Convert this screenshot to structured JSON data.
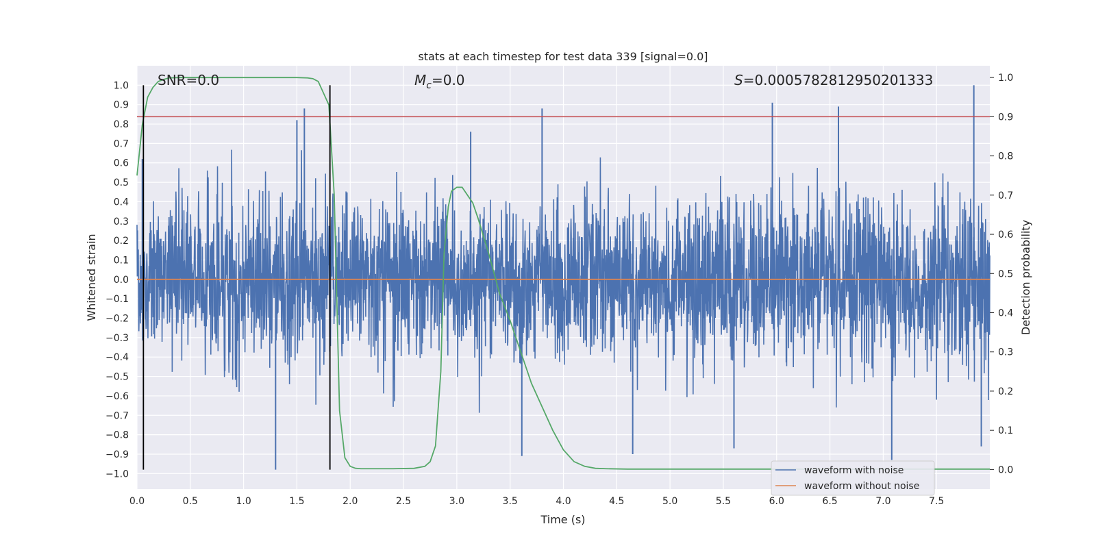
{
  "chart_data": {
    "type": "line",
    "title": "stats at each timestep for test data 339 [signal=0.0]",
    "xlabel": "Time (s)",
    "ylabel_left": "Whitened strain",
    "ylabel_right": "Detection probability",
    "xlim": [
      0.0,
      8.0
    ],
    "ylim_left": [
      -1.08,
      1.1
    ],
    "ylim_right": [
      -0.05,
      1.03
    ],
    "x_ticks": [
      "0.0",
      "0.5",
      "1.0",
      "1.5",
      "2.0",
      "2.5",
      "3.0",
      "3.5",
      "4.0",
      "4.5",
      "5.0",
      "5.5",
      "6.0",
      "6.5",
      "7.0",
      "7.5"
    ],
    "x_tick_values": [
      0.0,
      0.5,
      1.0,
      1.5,
      2.0,
      2.5,
      3.0,
      3.5,
      4.0,
      4.5,
      5.0,
      5.5,
      6.0,
      6.5,
      7.0,
      7.5
    ],
    "y_left_ticks": [
      "1.0",
      "0.9",
      "0.8",
      "0.7",
      "0.6",
      "0.5",
      "0.4",
      "0.3",
      "0.2",
      "0.1",
      "0.0",
      "−0.1",
      "−0.2",
      "−0.3",
      "−0.4",
      "−0.5",
      "−0.6",
      "−0.7",
      "−0.8",
      "−0.9",
      "−1.0"
    ],
    "y_left_tick_values": [
      1.0,
      0.9,
      0.8,
      0.7,
      0.6,
      0.5,
      0.4,
      0.3,
      0.2,
      0.1,
      0.0,
      -0.1,
      -0.2,
      -0.3,
      -0.4,
      -0.5,
      -0.6,
      -0.7,
      -0.8,
      -0.9,
      -1.0
    ],
    "y_right_ticks": [
      "1.0",
      "0.9",
      "0.8",
      "0.7",
      "0.6",
      "0.5",
      "0.4",
      "0.3",
      "0.2",
      "0.1",
      "0.0"
    ],
    "y_right_tick_values": [
      1.0,
      0.9,
      0.8,
      0.7,
      0.6,
      0.5,
      0.4,
      0.3,
      0.2,
      0.1,
      0.0
    ],
    "annotations": {
      "snr": "SNR=0.0",
      "mc_symbol": "M",
      "mc_subscript": "c",
      "mc_value": "=0.0",
      "s_symbol": "S",
      "s_value": "=0.0005782812950201333"
    },
    "vertical_lines_x": [
      0.06,
      1.81
    ],
    "threshold_right": 0.9,
    "noise_envelope": {
      "typical_amplitude": 0.48,
      "notable_peaks": [
        {
          "x": 0.05,
          "y": 0.62
        },
        {
          "x": 1.3,
          "y": -0.98
        },
        {
          "x": 1.57,
          "y": 0.88
        },
        {
          "x": 1.5,
          "y": 0.82
        },
        {
          "x": 3.13,
          "y": 0.76
        },
        {
          "x": 3.61,
          "y": -0.91
        },
        {
          "x": 3.8,
          "y": 0.88
        },
        {
          "x": 4.65,
          "y": -0.9
        },
        {
          "x": 5.96,
          "y": 0.91
        },
        {
          "x": 6.58,
          "y": 0.89
        },
        {
          "x": 7.08,
          "y": -0.93
        },
        {
          "x": 7.85,
          "y": 1.0
        },
        {
          "x": 7.92,
          "y": -0.86
        },
        {
          "x": 5.6,
          "y": -0.87
        }
      ]
    },
    "series": [
      {
        "name": "waveform with noise",
        "color": "#4c72b0",
        "axis": "left",
        "kind": "noise"
      },
      {
        "name": "waveform without noise",
        "color": "#dd8452",
        "axis": "left",
        "x": [
          0.0,
          8.0
        ],
        "y": [
          0.0,
          0.0
        ]
      },
      {
        "name": "detection probability",
        "color": "#55a868",
        "axis": "right",
        "in_legend": false,
        "x": [
          0.0,
          0.05,
          0.1,
          0.15,
          0.2,
          0.25,
          0.3,
          0.4,
          0.5,
          0.75,
          1.0,
          1.25,
          1.5,
          1.6,
          1.65,
          1.7,
          1.75,
          1.8,
          1.85,
          1.9,
          1.95,
          2.0,
          2.05,
          2.1,
          2.2,
          2.4,
          2.6,
          2.7,
          2.75,
          2.8,
          2.85,
          2.88,
          2.92,
          2.95,
          3.0,
          3.05,
          3.1,
          3.15,
          3.2,
          3.3,
          3.4,
          3.5,
          3.6,
          3.7,
          3.8,
          3.9,
          4.0,
          4.1,
          4.2,
          4.3,
          4.4,
          4.6,
          5.0,
          6.0,
          7.0,
          8.0
        ],
        "y": [
          0.75,
          0.88,
          0.95,
          0.975,
          0.99,
          0.995,
          0.999,
          1.0,
          1.0,
          1.0,
          1.0,
          1.0,
          1.0,
          0.999,
          0.997,
          0.99,
          0.96,
          0.93,
          0.7,
          0.15,
          0.03,
          0.008,
          0.003,
          0.002,
          0.002,
          0.002,
          0.003,
          0.008,
          0.02,
          0.06,
          0.25,
          0.55,
          0.67,
          0.71,
          0.72,
          0.72,
          0.7,
          0.68,
          0.64,
          0.55,
          0.45,
          0.38,
          0.3,
          0.22,
          0.16,
          0.1,
          0.05,
          0.02,
          0.008,
          0.003,
          0.002,
          0.001,
          0.001,
          0.001,
          0.001,
          0.001
        ]
      }
    ],
    "legend": {
      "position": "lower-right",
      "entries": [
        {
          "label": "waveform with noise",
          "color": "#4c72b0"
        },
        {
          "label": "waveform without noise",
          "color": "#dd8452"
        }
      ]
    },
    "colors": {
      "background": "#eaeaf2",
      "grid": "#ffffff",
      "threshold": "#c44e52",
      "vline": "#000000",
      "legend_face": "#eaeaf2"
    }
  }
}
